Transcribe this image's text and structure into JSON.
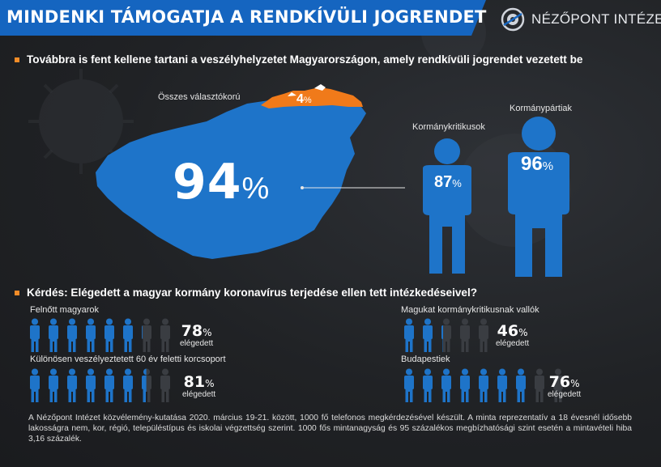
{
  "header": {
    "title": "MINDENKI TÁMOGATJA A RENDKÍVÜLI JOGRENDET",
    "brand": "NÉZŐPONT INTÉZET",
    "colors": {
      "banner": "#1565c0",
      "accent": "#f28c28",
      "figure_blue": "#1e74c9"
    }
  },
  "section1": {
    "heading": "Továbbra is fent kellene tartani a veszélyhelyzetet Magyarországon, amely rendkívüli jogrendet vezetett be",
    "map_label": "Összes választókorú",
    "map_value": "94",
    "other_value": "4",
    "critics_label": "Kormánykritikusok",
    "critics_value": "87",
    "supporters_label": "Kormánypártiak",
    "supporters_value": "96",
    "pct_sign": "%"
  },
  "section2": {
    "heading": "Kérdés: Elégedett a magyar kormány koronavírus terjedése ellen tett intézkedéseivel?",
    "suffix": "elégedett",
    "groups": [
      {
        "label": "Felnőtt magyarok",
        "value": "78",
        "fill": 0.78
      },
      {
        "label": "Magukat kormánykritikusnak vallók",
        "value": "46",
        "fill": 0.46
      },
      {
        "label": "Különösen veszélyeztetett 60 év feletti korcsoport",
        "value": "81",
        "fill": 0.81
      },
      {
        "label": "Budapestiek",
        "value": "76",
        "fill": 0.76
      }
    ]
  },
  "footnote": "A Nézőpont Intézet közvélemény-kutatása 2020. március 19-21. között, 1000 fő telefonos megkérdezésével készült. A minta reprezentatív a 18 évesnél idősebb lakosságra nem, kor, régió, településtípus és iskolai végzettség szerint. 1000 fős mintanagyság és 95 százalékos megbízhatósági szint esetén a mintavételi hiba 3,16 százalék."
}
